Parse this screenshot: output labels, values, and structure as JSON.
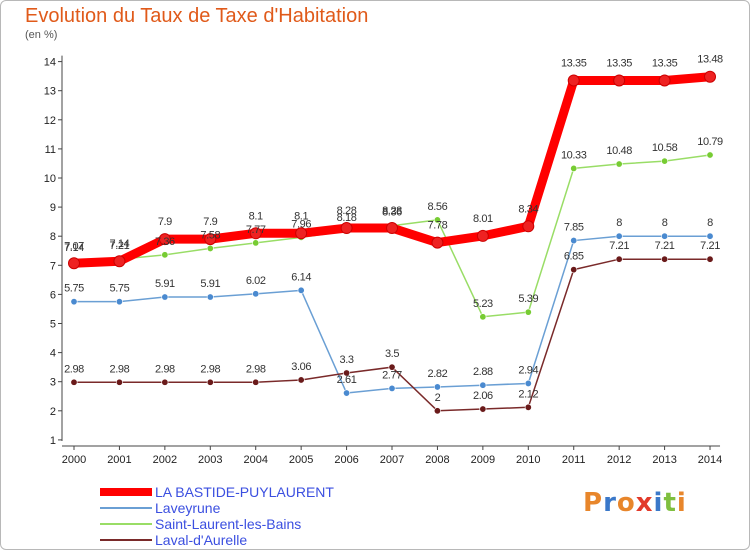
{
  "chart_data": {
    "type": "line",
    "title": "Evolution du Taux de Taxe d'Habitation",
    "subtitle": "(en %)",
    "x": [
      2000,
      2001,
      2002,
      2003,
      2004,
      2005,
      2006,
      2007,
      2008,
      2009,
      2010,
      2011,
      2012,
      2013,
      2014
    ],
    "ylim": [
      0,
      14
    ],
    "yticks": [
      1,
      2,
      3,
      4,
      5,
      6,
      7,
      8,
      9,
      10,
      11,
      12,
      13,
      14
    ],
    "grid": false,
    "legend_position": "bottom-left",
    "series": [
      {
        "name": "LA BASTIDE-PUYLAURENT",
        "color": "#ff0000",
        "marker_color": "#ee2222",
        "values": [
          7.07,
          7.14,
          7.9,
          7.9,
          8.1,
          8.1,
          8.28,
          8.28,
          7.78,
          8.01,
          8.34,
          13.35,
          13.35,
          13.35,
          13.48
        ],
        "labels": [
          "7.07",
          "7.14",
          "7.9",
          "7.9",
          "8.1",
          "8.1",
          "8.28",
          "8.28",
          "7.78",
          "8.01",
          "8.34",
          "13.35",
          "13.35",
          "13.35",
          "13.48"
        ]
      },
      {
        "name": "Laveyrune",
        "color": "#6a9fd4",
        "marker_color": "#4a8ad0",
        "values": [
          5.75,
          5.75,
          5.91,
          5.91,
          6.02,
          6.14,
          2.61,
          2.77,
          2.82,
          2.88,
          2.94,
          7.85,
          8,
          8,
          8
        ],
        "labels": [
          "5.75",
          "5.75",
          "5.91",
          "5.91",
          "6.02",
          "6.14",
          "2.61",
          "2.77",
          "2.82",
          "2.88",
          "2.94",
          "7.85",
          "8",
          "8",
          "8"
        ]
      },
      {
        "name": "Saint-Laurent-les-Bains",
        "color": "#99dd66",
        "marker_color": "#77cc33",
        "values": [
          7.14,
          7.21,
          7.36,
          7.58,
          7.77,
          7.96,
          8.18,
          8.36,
          8.56,
          5.23,
          5.39,
          10.33,
          10.48,
          10.58,
          10.79
        ],
        "labels": [
          "7.14",
          "7.21",
          "7.36",
          "7.58",
          "7.77",
          "7.96",
          "8.18",
          "8.36",
          "8.56",
          "5.23",
          "5.39",
          "10.33",
          "10.48",
          "10.58",
          "10.79"
        ]
      },
      {
        "name": "Laval-d'Aurelle",
        "color": "#7a2a2a",
        "marker_color": "#6a1a1a",
        "values": [
          2.98,
          2.98,
          2.98,
          2.98,
          2.98,
          3.06,
          3.3,
          3.5,
          2,
          2.06,
          2.12,
          6.85,
          7.21,
          7.21,
          7.21
        ],
        "labels": [
          "2.98",
          "2.98",
          "2.98",
          "2.98",
          "2.98",
          "3.06",
          "3.3",
          "3.5",
          "2",
          "2.06",
          "2.12",
          "6.85",
          "7.21",
          "7.21",
          "7.21"
        ]
      }
    ]
  },
  "logo": {
    "text": "Proxiti",
    "colors": [
      "#e8862b",
      "#3a78c9",
      "#e8862b",
      "#e23a2a",
      "#3a78c9",
      "#7fbf3f",
      "#e8862b"
    ]
  }
}
